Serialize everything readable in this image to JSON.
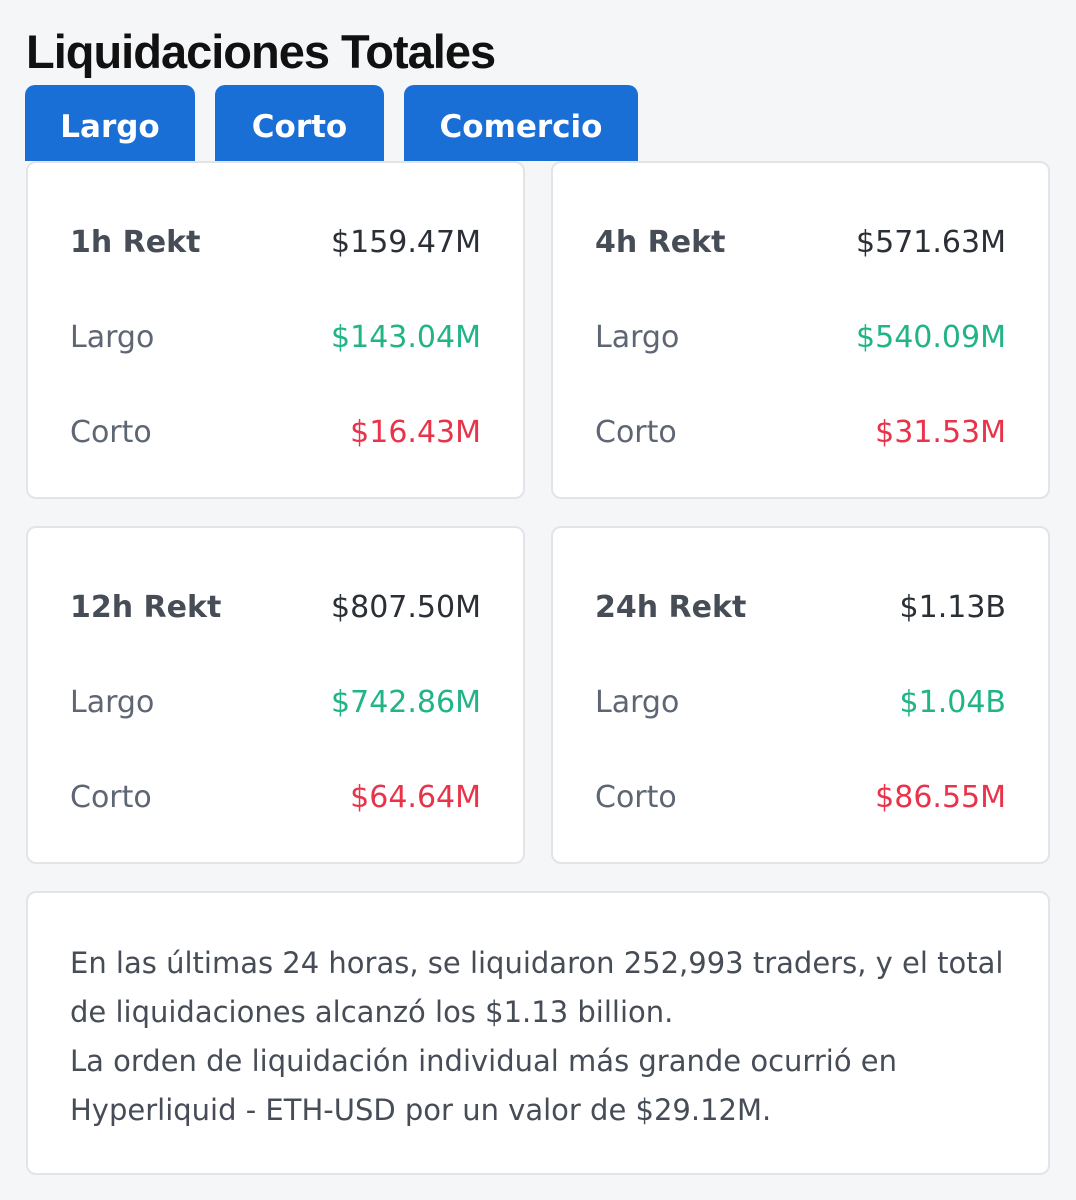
{
  "page": {
    "title": "Liquidaciones Totales"
  },
  "tabs": [
    {
      "label": "Largo"
    },
    {
      "label": "Corto"
    },
    {
      "label": "Comercio"
    }
  ],
  "cards": [
    {
      "period": "1h Rekt",
      "total": "$159.47M",
      "long_label": "Largo",
      "long": "$143.04M",
      "short_label": "Corto",
      "short": "$16.43M"
    },
    {
      "period": "4h Rekt",
      "total": "$571.63M",
      "long_label": "Largo",
      "long": "$540.09M",
      "short_label": "Corto",
      "short": "$31.53M"
    },
    {
      "period": "12h Rekt",
      "total": "$807.50M",
      "long_label": "Largo",
      "long": "$742.86M",
      "short_label": "Corto",
      "short": "$64.64M"
    },
    {
      "period": "24h Rekt",
      "total": "$1.13B",
      "long_label": "Largo",
      "long": "$1.04B",
      "short_label": "Corto",
      "short": "$86.55M"
    }
  ],
  "summary": {
    "line1": "En las últimas 24 horas, se liquidaron 252,993 traders, y el total de liquidaciones alcanzó los $1.13 billion.",
    "line2": "La orden de liquidación individual más grande ocurrió en Hyperliquid - ETH-USD por un valor de $29.12M."
  },
  "colors": {
    "accent": "#1a6fd6",
    "long": "#20b486",
    "short": "#e8334a"
  }
}
